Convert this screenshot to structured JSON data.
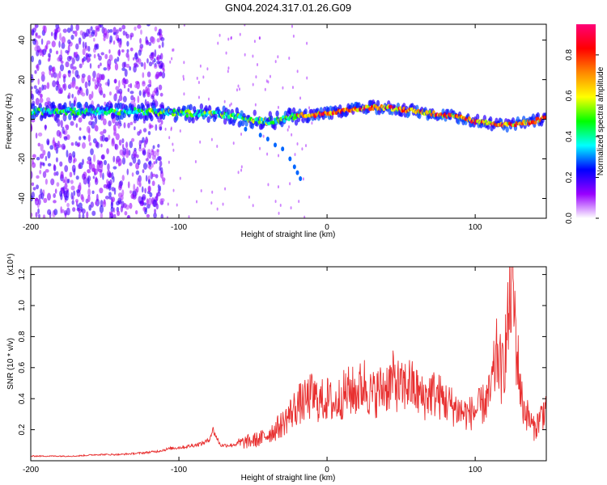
{
  "title": "GN04.2024.317.01.26.G09",
  "chart_data": [
    {
      "type": "heatmap",
      "xlabel": "Height of straight line (km)",
      "ylabel": "Frequency (Hz)",
      "xlim": [
        -200,
        148
      ],
      "ylim": [
        -50,
        48
      ],
      "x_ticks": [
        -200,
        -100,
        0,
        100
      ],
      "x_tick_labels": [
        "-200",
        "-100",
        "0",
        "100"
      ],
      "y_ticks": [
        40,
        20,
        0,
        -20,
        -40
      ],
      "y_tick_labels": [
        "40",
        "20",
        "0",
        "-20",
        "-40"
      ],
      "colorbar": {
        "label": "Normalized spectral amplitude",
        "range": [
          0,
          0.95
        ],
        "ticks": [
          0.0,
          0.2,
          0.4,
          0.6,
          0.8
        ],
        "tick_labels": [
          "0.0",
          "0.2",
          "0.4",
          "0.6",
          "0.8"
        ],
        "colors": [
          "#ffffff",
          "#9900ff",
          "#0000ff",
          "#00ffff",
          "#00ff00",
          "#ffff00",
          "#ff8800",
          "#ff0000",
          "#ff0077"
        ]
      },
      "ridge": {
        "x": [
          -200,
          -180,
          -160,
          -140,
          -120,
          -100,
          -80,
          -60,
          -50,
          -40,
          -30,
          -20,
          -10,
          0,
          10,
          20,
          30,
          40,
          50,
          60,
          70,
          80,
          90,
          100,
          110,
          120,
          130,
          140,
          148
        ],
        "freq": [
          4,
          4,
          4,
          4,
          4,
          3,
          3,
          1,
          0,
          -1,
          0,
          2,
          2,
          3,
          4,
          5,
          6,
          6,
          5,
          4,
          3,
          2,
          1,
          -1,
          -2,
          -3,
          -2,
          -1,
          1
        ]
      },
      "branch": {
        "x": [
          -55,
          -45,
          -40,
          -35,
          -30,
          -25,
          -22,
          -20,
          -18
        ],
        "freq": [
          -5,
          -8,
          -10,
          -13,
          -15,
          -20,
          -24,
          -27,
          -30
        ]
      },
      "grid": false
    },
    {
      "type": "line",
      "xlabel": "Height of straight line (km)",
      "ylabel": "SNR (10 * v/v)",
      "scale_note": "(x10⁴)",
      "xlim": [
        -200,
        148
      ],
      "ylim": [
        0,
        1.25
      ],
      "x_ticks": [
        -200,
        -100,
        0,
        100
      ],
      "x_tick_labels": [
        "-200",
        "-100",
        "0",
        "100"
      ],
      "y_ticks": [
        0.2,
        0.4,
        0.6,
        0.8,
        1.0,
        1.2
      ],
      "y_tick_labels": [
        "0.2",
        "0.4",
        "0.6",
        "0.8",
        "1.0",
        "1.2"
      ],
      "series": [
        {
          "color": "#e83030",
          "x": [
            -200,
            -185,
            -170,
            -155,
            -140,
            -125,
            -115,
            -105,
            -95,
            -85,
            -80,
            -77,
            -72,
            -65,
            -55,
            -45,
            -35,
            -30,
            -25,
            -20,
            -15,
            -10,
            -5,
            0,
            5,
            10,
            15,
            20,
            25,
            30,
            35,
            40,
            45,
            50,
            55,
            60,
            65,
            70,
            75,
            80,
            85,
            90,
            95,
            100,
            105,
            110,
            115,
            118,
            122,
            125,
            128,
            132,
            135,
            140,
            145,
            148
          ],
          "y": [
            0.03,
            0.03,
            0.03,
            0.04,
            0.04,
            0.05,
            0.06,
            0.08,
            0.09,
            0.11,
            0.13,
            0.2,
            0.1,
            0.1,
            0.12,
            0.14,
            0.2,
            0.24,
            0.3,
            0.36,
            0.38,
            0.42,
            0.38,
            0.4,
            0.36,
            0.42,
            0.45,
            0.44,
            0.5,
            0.42,
            0.45,
            0.48,
            0.52,
            0.46,
            0.5,
            0.45,
            0.4,
            0.44,
            0.42,
            0.38,
            0.35,
            0.32,
            0.3,
            0.32,
            0.36,
            0.42,
            0.7,
            0.55,
            0.85,
            1.22,
            0.7,
            0.35,
            0.3,
            0.2,
            0.3,
            0.35
          ]
        }
      ],
      "grid": false
    }
  ]
}
